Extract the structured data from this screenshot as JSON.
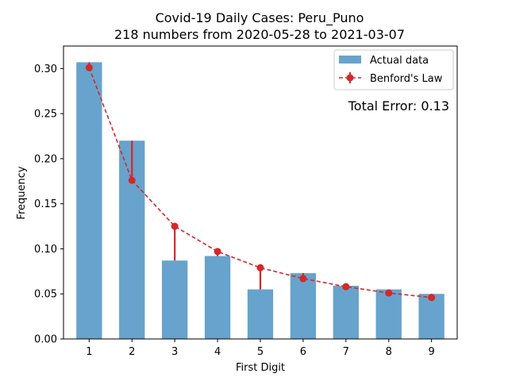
{
  "chart_data": {
    "type": "bar",
    "title": "Covid-19 Daily Cases: Peru_Puno",
    "subtitle": "218 numbers from 2020-05-28 to 2021-03-07",
    "xlabel": "First Digit",
    "ylabel": "Frequency",
    "categories": [
      "1",
      "2",
      "3",
      "4",
      "5",
      "6",
      "7",
      "8",
      "9"
    ],
    "ylim": [
      0,
      0.325
    ],
    "yticks": [
      "0.00",
      "0.05",
      "0.10",
      "0.15",
      "0.20",
      "0.25",
      "0.30"
    ],
    "series": [
      {
        "name": "Actual data",
        "kind": "bar",
        "color": "#1f77b4",
        "values": [
          0.307,
          0.22,
          0.087,
          0.092,
          0.055,
          0.073,
          0.059,
          0.055,
          0.05
        ]
      },
      {
        "name": "Benford's Law",
        "kind": "line-errorbar",
        "color": "#d62728",
        "values": [
          0.301,
          0.176,
          0.125,
          0.097,
          0.079,
          0.067,
          0.058,
          0.051,
          0.046
        ]
      }
    ],
    "annotation": "Total Error: 0.13",
    "annotation_color": "#d62728",
    "legend_position": "top-right",
    "grid": false
  }
}
